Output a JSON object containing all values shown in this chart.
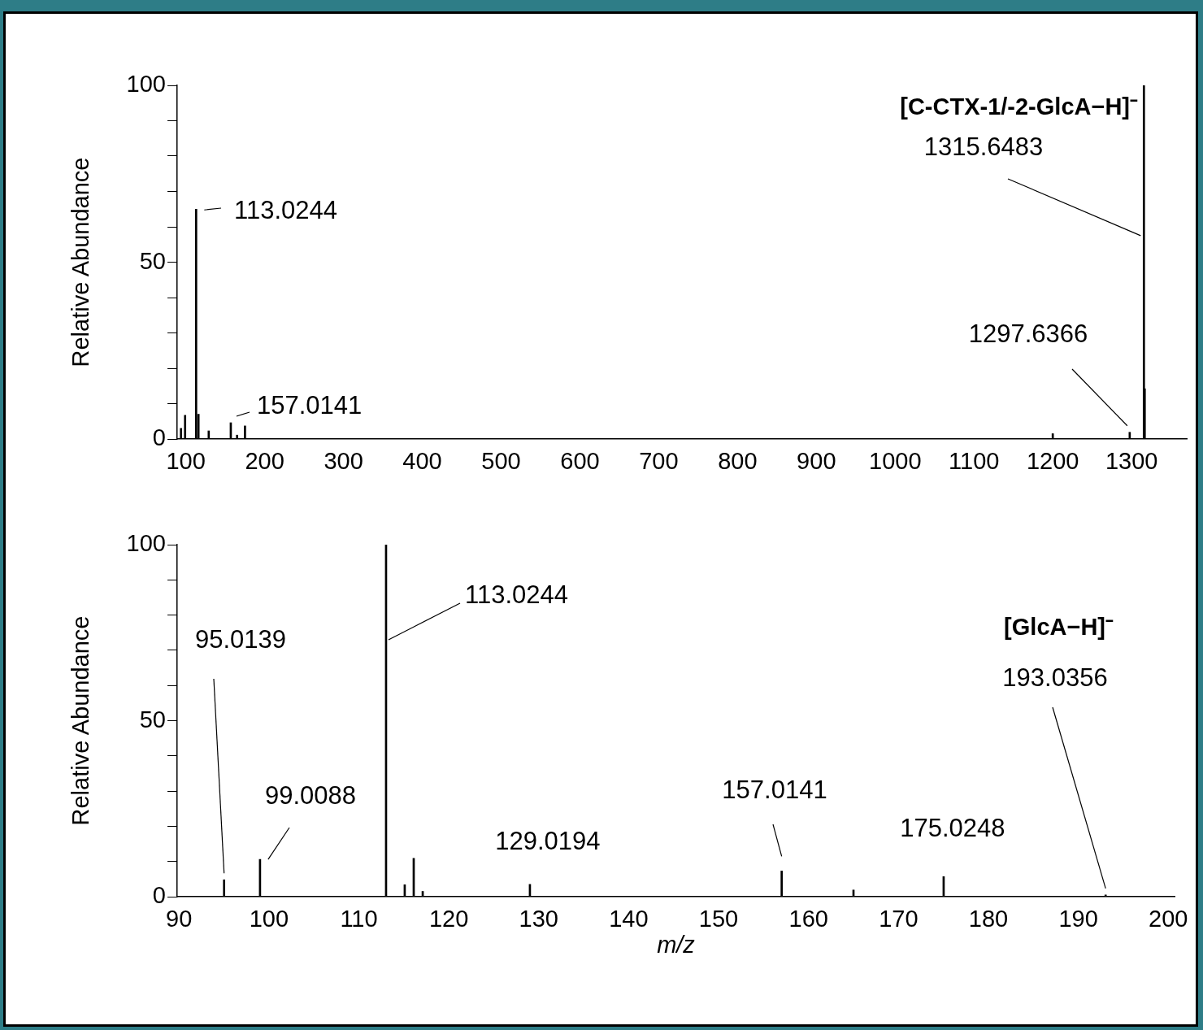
{
  "chart_data": [
    {
      "type": "bar",
      "ylabel": "Relative Abundance",
      "x": [
        93.8,
        99.0088,
        113.0244,
        116.0,
        129.0194,
        157.0141,
        165.0,
        175.0248,
        1200.0,
        1297.6366,
        1315.6483,
        1316.65
      ],
      "values": [
        3,
        6.7,
        65,
        7,
        2.3,
        4.6,
        1.1,
        3.7,
        1.5,
        1.9,
        100,
        14.2
      ],
      "color": "#000000",
      "xlim": [
        89,
        1370
      ],
      "xticks": [
        100,
        200,
        300,
        400,
        500,
        600,
        700,
        800,
        900,
        1000,
        1100,
        1200,
        1300
      ],
      "ylim": [
        0,
        100
      ],
      "yticks": [
        0,
        {
          "value": 10,
          "label": null
        },
        {
          "value": 20,
          "label": null
        },
        {
          "value": 30,
          "label": null
        },
        {
          "value": 40,
          "label": null
        },
        50,
        {
          "value": 60,
          "label": null
        },
        {
          "value": 70,
          "label": null
        },
        {
          "value": 80,
          "label": null
        },
        {
          "value": 90,
          "label": null
        },
        100
      ],
      "annotations": [
        "[C-CTX-1/-2-GlcA−H]⁻",
        {
          "text": "1315.6483",
          "x": 1315.6483,
          "y": 57.5
        },
        {
          "text": "113.0244",
          "x": 113.0244,
          "y": 65
        },
        {
          "text": "157.0141",
          "x": 157.0141,
          "y": 4.6
        },
        {
          "text": "1297.6366",
          "x": 1297.6366,
          "y": 1.9
        }
      ]
    },
    {
      "type": "bar",
      "ylabel": "Relative Abundance",
      "xlabel": "m/z",
      "x": [
        95.0139,
        99.0088,
        113.0244,
        115.1,
        116.1,
        117.1,
        129.0194,
        157.0141,
        165.0,
        175.0248,
        193.0356
      ],
      "values": [
        4.8,
        10.6,
        100,
        3.4,
        10.9,
        1.5,
        3.5,
        7.3,
        1.9,
        5.7,
        0.5
      ],
      "color": "#000000",
      "xlim": [
        89.8,
        200.7
      ],
      "xticks": [
        90,
        100,
        110,
        120,
        130,
        140,
        150,
        160,
        170,
        180,
        190,
        200
      ],
      "ylim": [
        0,
        100
      ],
      "yticks": [
        0,
        {
          "value": 10,
          "label": null
        },
        {
          "value": 20,
          "label": null
        },
        {
          "value": 30,
          "label": null
        },
        {
          "value": 40,
          "label": null
        },
        50,
        {
          "value": 60,
          "label": null
        },
        {
          "value": 70,
          "label": null
        },
        {
          "value": 80,
          "label": null
        },
        {
          "value": 90,
          "label": null
        },
        100
      ],
      "annotations": [
        "[GlcA−H]⁻",
        {
          "text": "193.0356",
          "x": 193.0356,
          "y": 0.5
        },
        {
          "text": "113.0244",
          "x": 113.0244,
          "y": 73
        },
        {
          "text": "95.0139",
          "x": 95.0139,
          "y": 4.8
        },
        {
          "text": "99.0088",
          "x": 99.0088,
          "y": 10.6
        },
        {
          "text": "129.0194",
          "x": 129.0194,
          "y": 3.5
        },
        {
          "text": "157.0141",
          "x": 157.0141,
          "y": 7.3
        },
        {
          "text": "175.0248",
          "x": 175.0248,
          "y": 5.7
        }
      ]
    }
  ]
}
